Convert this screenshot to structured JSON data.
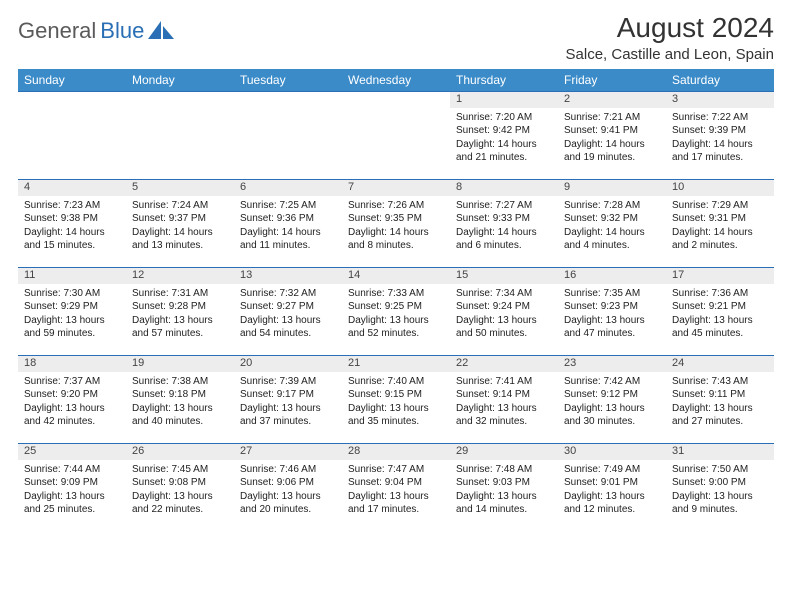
{
  "brand": {
    "part1": "General",
    "part2": "Blue"
  },
  "title": "August 2024",
  "location": "Salce, Castille and Leon, Spain",
  "colors": {
    "header_bg": "#3b8bc9",
    "header_text": "#ffffff",
    "daynum_bg": "#ededed",
    "rule": "#2a6fb5",
    "brand_gray": "#5a5a5a",
    "brand_blue": "#2a6fb5"
  },
  "day_headers": [
    "Sunday",
    "Monday",
    "Tuesday",
    "Wednesday",
    "Thursday",
    "Friday",
    "Saturday"
  ],
  "weeks": [
    [
      null,
      null,
      null,
      null,
      {
        "n": "1",
        "sunrise": "7:20 AM",
        "sunset": "9:42 PM",
        "dl": "14 hours and 21 minutes."
      },
      {
        "n": "2",
        "sunrise": "7:21 AM",
        "sunset": "9:41 PM",
        "dl": "14 hours and 19 minutes."
      },
      {
        "n": "3",
        "sunrise": "7:22 AM",
        "sunset": "9:39 PM",
        "dl": "14 hours and 17 minutes."
      }
    ],
    [
      {
        "n": "4",
        "sunrise": "7:23 AM",
        "sunset": "9:38 PM",
        "dl": "14 hours and 15 minutes."
      },
      {
        "n": "5",
        "sunrise": "7:24 AM",
        "sunset": "9:37 PM",
        "dl": "14 hours and 13 minutes."
      },
      {
        "n": "6",
        "sunrise": "7:25 AM",
        "sunset": "9:36 PM",
        "dl": "14 hours and 11 minutes."
      },
      {
        "n": "7",
        "sunrise": "7:26 AM",
        "sunset": "9:35 PM",
        "dl": "14 hours and 8 minutes."
      },
      {
        "n": "8",
        "sunrise": "7:27 AM",
        "sunset": "9:33 PM",
        "dl": "14 hours and 6 minutes."
      },
      {
        "n": "9",
        "sunrise": "7:28 AM",
        "sunset": "9:32 PM",
        "dl": "14 hours and 4 minutes."
      },
      {
        "n": "10",
        "sunrise": "7:29 AM",
        "sunset": "9:31 PM",
        "dl": "14 hours and 2 minutes."
      }
    ],
    [
      {
        "n": "11",
        "sunrise": "7:30 AM",
        "sunset": "9:29 PM",
        "dl": "13 hours and 59 minutes."
      },
      {
        "n": "12",
        "sunrise": "7:31 AM",
        "sunset": "9:28 PM",
        "dl": "13 hours and 57 minutes."
      },
      {
        "n": "13",
        "sunrise": "7:32 AM",
        "sunset": "9:27 PM",
        "dl": "13 hours and 54 minutes."
      },
      {
        "n": "14",
        "sunrise": "7:33 AM",
        "sunset": "9:25 PM",
        "dl": "13 hours and 52 minutes."
      },
      {
        "n": "15",
        "sunrise": "7:34 AM",
        "sunset": "9:24 PM",
        "dl": "13 hours and 50 minutes."
      },
      {
        "n": "16",
        "sunrise": "7:35 AM",
        "sunset": "9:23 PM",
        "dl": "13 hours and 47 minutes."
      },
      {
        "n": "17",
        "sunrise": "7:36 AM",
        "sunset": "9:21 PM",
        "dl": "13 hours and 45 minutes."
      }
    ],
    [
      {
        "n": "18",
        "sunrise": "7:37 AM",
        "sunset": "9:20 PM",
        "dl": "13 hours and 42 minutes."
      },
      {
        "n": "19",
        "sunrise": "7:38 AM",
        "sunset": "9:18 PM",
        "dl": "13 hours and 40 minutes."
      },
      {
        "n": "20",
        "sunrise": "7:39 AM",
        "sunset": "9:17 PM",
        "dl": "13 hours and 37 minutes."
      },
      {
        "n": "21",
        "sunrise": "7:40 AM",
        "sunset": "9:15 PM",
        "dl": "13 hours and 35 minutes."
      },
      {
        "n": "22",
        "sunrise": "7:41 AM",
        "sunset": "9:14 PM",
        "dl": "13 hours and 32 minutes."
      },
      {
        "n": "23",
        "sunrise": "7:42 AM",
        "sunset": "9:12 PM",
        "dl": "13 hours and 30 minutes."
      },
      {
        "n": "24",
        "sunrise": "7:43 AM",
        "sunset": "9:11 PM",
        "dl": "13 hours and 27 minutes."
      }
    ],
    [
      {
        "n": "25",
        "sunrise": "7:44 AM",
        "sunset": "9:09 PM",
        "dl": "13 hours and 25 minutes."
      },
      {
        "n": "26",
        "sunrise": "7:45 AM",
        "sunset": "9:08 PM",
        "dl": "13 hours and 22 minutes."
      },
      {
        "n": "27",
        "sunrise": "7:46 AM",
        "sunset": "9:06 PM",
        "dl": "13 hours and 20 minutes."
      },
      {
        "n": "28",
        "sunrise": "7:47 AM",
        "sunset": "9:04 PM",
        "dl": "13 hours and 17 minutes."
      },
      {
        "n": "29",
        "sunrise": "7:48 AM",
        "sunset": "9:03 PM",
        "dl": "13 hours and 14 minutes."
      },
      {
        "n": "30",
        "sunrise": "7:49 AM",
        "sunset": "9:01 PM",
        "dl": "13 hours and 12 minutes."
      },
      {
        "n": "31",
        "sunrise": "7:50 AM",
        "sunset": "9:00 PM",
        "dl": "13 hours and 9 minutes."
      }
    ]
  ],
  "labels": {
    "sunrise": "Sunrise: ",
    "sunset": "Sunset: ",
    "daylight": "Daylight: "
  }
}
